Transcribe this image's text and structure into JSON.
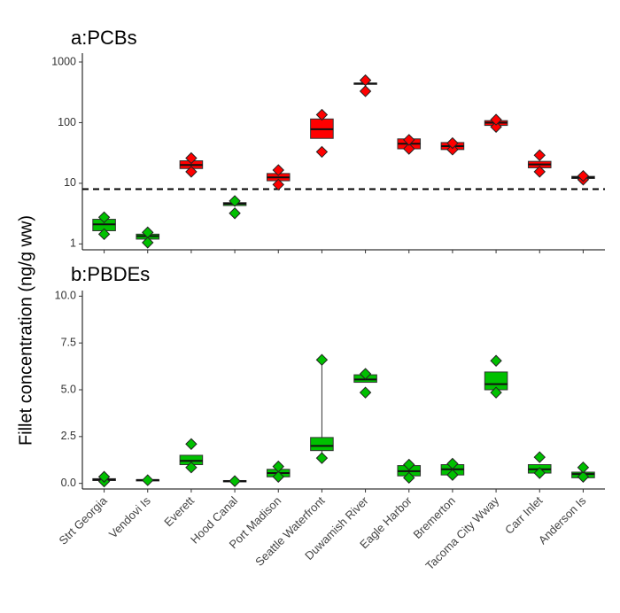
{
  "chart_data": [
    {
      "type": "box",
      "title": "a:PCBs",
      "ylabel": "Fillet concentration (ng/g ww)",
      "yscale": "log",
      "ylim": [
        0.8,
        1400
      ],
      "yticks": [
        "1",
        "10",
        "100",
        "1000"
      ],
      "reference_line": {
        "value": 8,
        "style": "dashed"
      },
      "categories": [
        "Strt Georgia",
        "Vendovi Is",
        "Everett",
        "Hood Canal",
        "Port Madison",
        "Seattle Waterfront",
        "Duwamish River",
        "Eagle Harbor",
        "Bremerton",
        "Tacoma City Wway",
        "Carr Inlet",
        "Anderson Is"
      ],
      "boxes": [
        {
          "q1": 1.65,
          "median": 2.1,
          "q3": 2.55,
          "low": 1.65,
          "high": 2.55,
          "points": [
            1.45,
            2.75
          ],
          "color": "#00c000"
        },
        {
          "q1": 1.2,
          "median": 1.35,
          "q3": 1.45,
          "low": 1.2,
          "high": 1.45,
          "points": [
            1.05,
            1.55
          ],
          "color": "#00c000"
        },
        {
          "q1": 17.5,
          "median": 20,
          "q3": 23.5,
          "low": 17.5,
          "high": 23.5,
          "points": [
            15.5,
            26
          ],
          "color": "#ff0000"
        },
        {
          "q1": 4.3,
          "median": 4.6,
          "q3": 4.8,
          "low": 4.3,
          "high": 4.8,
          "points": [
            3.2,
            5.1
          ],
          "color": "#00c000"
        },
        {
          "q1": 11,
          "median": 12.5,
          "q3": 14.5,
          "low": 11,
          "high": 14.5,
          "points": [
            9.5,
            16.5
          ],
          "color": "#ff0000"
        },
        {
          "q1": 55,
          "median": 78,
          "q3": 115,
          "low": 55,
          "high": 115,
          "points": [
            33,
            135
          ],
          "color": "#ff0000"
        },
        {
          "q1": 430,
          "median": 440,
          "q3": 450,
          "low": 430,
          "high": 450,
          "points": [
            330,
            500
          ],
          "color": "#ff0000"
        },
        {
          "q1": 37,
          "median": 45,
          "q3": 54,
          "low": 37,
          "high": 54,
          "points": [
            37,
            52
          ],
          "color": "#ff0000"
        },
        {
          "q1": 36,
          "median": 41,
          "q3": 47,
          "low": 36,
          "high": 47,
          "points": [
            36,
            46
          ],
          "color": "#ff0000"
        },
        {
          "q1": 90,
          "median": 100,
          "q3": 108,
          "low": 90,
          "high": 108,
          "points": [
            85,
            112
          ],
          "color": "#ff0000"
        },
        {
          "q1": 18,
          "median": 20.5,
          "q3": 23,
          "low": 18,
          "high": 23,
          "points": [
            15.5,
            29
          ],
          "color": "#ff0000"
        },
        {
          "q1": 12,
          "median": 12.5,
          "q3": 13,
          "low": 12,
          "high": 13,
          "points": [
            11.5,
            13.2
          ],
          "color": "#ff0000"
        }
      ]
    },
    {
      "type": "box",
      "title": "b:PBDEs",
      "ylabel": "Fillet concentration (ng/g ww)",
      "ylim": [
        -0.3,
        10.3
      ],
      "yticks": [
        "0.0",
        "2.5",
        "5.0",
        "7.5",
        "10.0"
      ],
      "categories": [
        "Strt Georgia",
        "Vendovi Is",
        "Everett",
        "Hood Canal",
        "Port Madison",
        "Seattle Waterfront",
        "Duwamish River",
        "Eagle Harbor",
        "Bremerton",
        "Tacoma City Wway",
        "Carr Inlet",
        "Anderson Is"
      ],
      "boxes": [
        {
          "q1": 0.15,
          "median": 0.2,
          "q3": 0.25,
          "low": 0.15,
          "high": 0.25,
          "points": [
            0.1,
            0.35
          ],
          "color": "#00c000"
        },
        {
          "q1": 0.15,
          "median": 0.18,
          "q3": 0.2,
          "low": 0.15,
          "high": 0.2,
          "points": [
            0.17
          ],
          "color": "#00c000"
        },
        {
          "q1": 1.0,
          "median": 1.2,
          "q3": 1.5,
          "low": 1.0,
          "high": 1.5,
          "points": [
            0.85,
            2.1
          ],
          "color": "#00c000"
        },
        {
          "q1": 0.1,
          "median": 0.12,
          "q3": 0.15,
          "low": 0.1,
          "high": 0.15,
          "points": [
            0.12
          ],
          "color": "#00c000"
        },
        {
          "q1": 0.35,
          "median": 0.55,
          "q3": 0.75,
          "low": 0.35,
          "high": 0.75,
          "points": [
            0.35,
            0.9
          ],
          "color": "#00c000"
        },
        {
          "q1": 1.75,
          "median": 2.0,
          "q3": 2.45,
          "low": 1.4,
          "high": 6.6,
          "points": [
            1.35,
            6.6
          ],
          "color": "#00c000"
        },
        {
          "q1": 5.4,
          "median": 5.55,
          "q3": 5.8,
          "low": 5.4,
          "high": 5.8,
          "points": [
            4.85,
            5.85
          ],
          "color": "#00c000"
        },
        {
          "q1": 0.4,
          "median": 0.65,
          "q3": 0.95,
          "low": 0.4,
          "high": 0.95,
          "points": [
            0.3,
            1.0
          ],
          "color": "#00c000"
        },
        {
          "q1": 0.45,
          "median": 0.75,
          "q3": 1.0,
          "low": 0.45,
          "high": 1.0,
          "points": [
            0.45,
            1.05
          ],
          "color": "#00c000"
        },
        {
          "q1": 5.0,
          "median": 5.3,
          "q3": 5.95,
          "low": 5.0,
          "high": 5.95,
          "points": [
            4.85,
            6.55
          ],
          "color": "#00c000"
        },
        {
          "q1": 0.55,
          "median": 0.75,
          "q3": 1.0,
          "low": 0.55,
          "high": 1.0,
          "points": [
            0.55,
            1.4
          ],
          "color": "#00c000"
        },
        {
          "q1": 0.3,
          "median": 0.5,
          "q3": 0.6,
          "low": 0.3,
          "high": 0.6,
          "points": [
            0.35,
            0.85
          ],
          "color": "#00c000"
        }
      ]
    }
  ]
}
